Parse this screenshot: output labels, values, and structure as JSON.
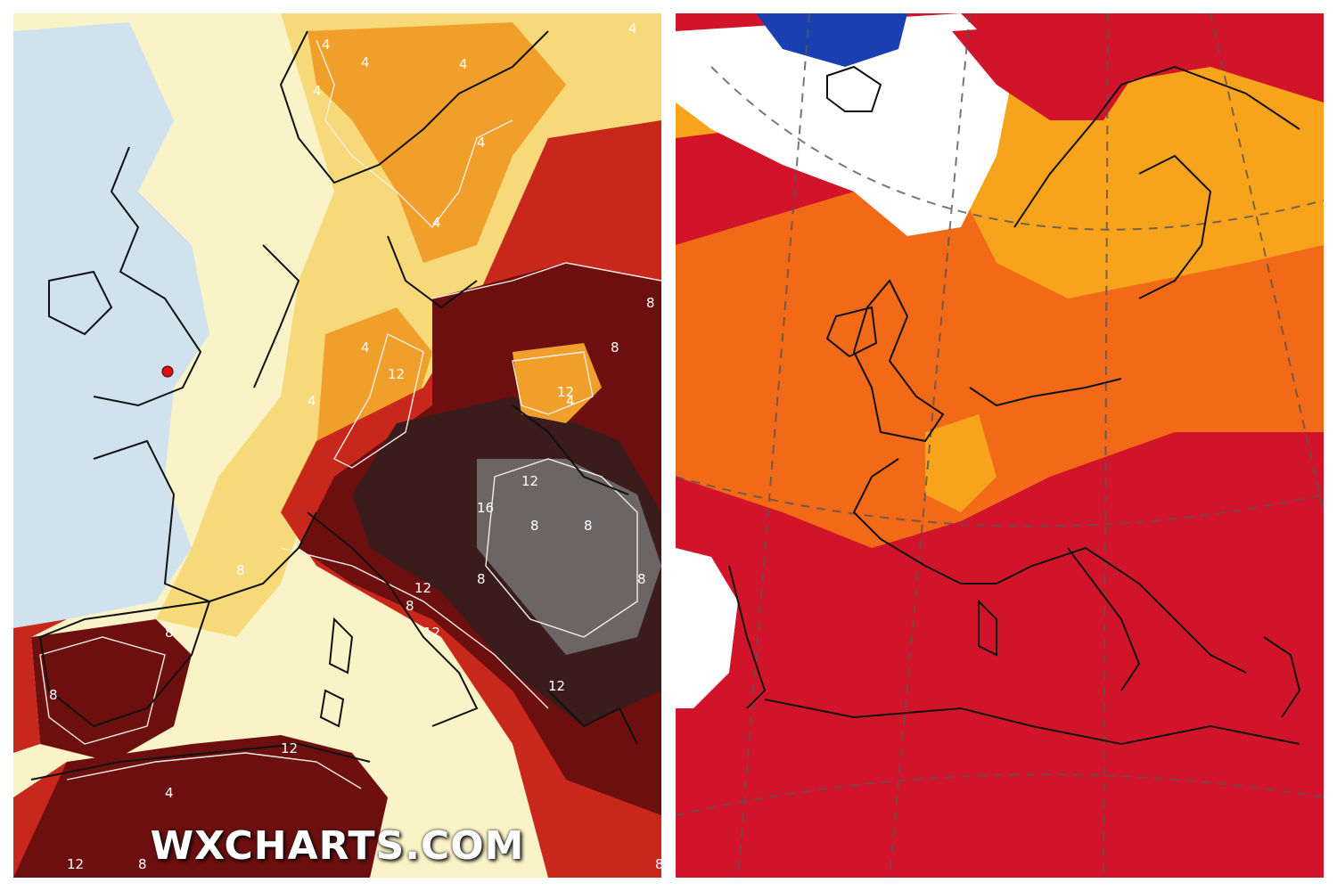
{
  "left_map": {
    "watermark": "WXCHARTS.COM",
    "contour_labels": [
      "4",
      "4",
      "4",
      "4",
      "4",
      "4",
      "4",
      "4",
      "4",
      "4",
      "8",
      "8",
      "8",
      "8",
      "8",
      "8",
      "8",
      "8",
      "8",
      "12",
      "16",
      "8",
      "12",
      "12",
      "12",
      "12",
      "12",
      "12",
      "12",
      "4",
      "8",
      "8"
    ],
    "marker": "red dot over southern England",
    "colors": {
      "cool_blue": "#cfe2ee",
      "pale_yellow": "#fbf3c8",
      "yellow": "#f7d97a",
      "orange": "#f0a02a",
      "red": "#c8281c",
      "dark_red": "#6e0f0f",
      "deepest": "#3b1c1c",
      "grey_peak": "#6b6566",
      "marker": "#e01010"
    }
  },
  "right_map": {
    "colors": {
      "white": "#ffffff",
      "blue": "#1a3fb0",
      "orange_light": "#f8a31c",
      "orange": "#f26a17",
      "red": "#d2142a"
    }
  }
}
